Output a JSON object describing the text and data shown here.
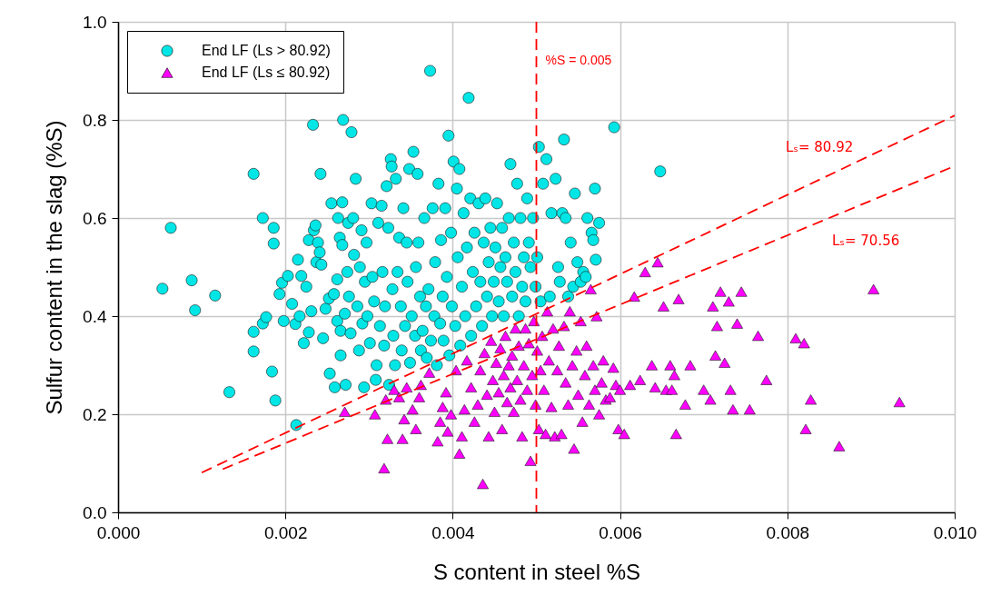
{
  "chart_data": {
    "type": "scatter",
    "xlabel": "S content in steel    %S",
    "ylabel": "Sulfur content in the slag    (%S)",
    "xlim": [
      0,
      0.01
    ],
    "xticks": [
      {
        "value": 0,
        "label": "0.000"
      },
      0.002,
      0.004,
      0.006,
      0.008,
      {
        "value": 0.01,
        "label": "0.010"
      }
    ],
    "ylim": [
      0,
      1
    ],
    "yticks": [
      {
        "value": 0,
        "label": "0.0"
      },
      0.2,
      0.4,
      0.6,
      0.8,
      {
        "value": 1,
        "label": "1.0"
      }
    ],
    "grid": true,
    "legend": "top left",
    "series": [
      {
        "name": "End LF (Ls > 80.92)",
        "marker": "circle",
        "color": "#00e6e6",
        "x": [
          0.00053,
          0.00063,
          0.00088,
          0.00092,
          0.00116,
          0.00133,
          0.00162,
          0.00162,
          0.00162,
          0.00173,
          0.00173,
          0.00177,
          0.00184,
          0.00186,
          0.00186,
          0.00188,
          0.00193,
          0.00196,
          0.00198,
          0.00203,
          0.00208,
          0.00212,
          0.00213,
          0.00215,
          0.00217,
          0.00219,
          0.00222,
          0.00225,
          0.00228,
          0.00228,
          0.00231,
          0.00233,
          0.00234,
          0.00236,
          0.00237,
          0.00239,
          0.00241,
          0.00242,
          0.00243,
          0.00245,
          0.00248,
          0.00252,
          0.00253,
          0.00255,
          0.00258,
          0.00259,
          0.00262,
          0.00262,
          0.00263,
          0.00265,
          0.00266,
          0.00266,
          0.00268,
          0.00268,
          0.00269,
          0.00271,
          0.00272,
          0.00274,
          0.00275,
          0.00276,
          0.00278,
          0.00279,
          0.00281,
          0.00282,
          0.00284,
          0.00286,
          0.00288,
          0.00289,
          0.00291,
          0.00292,
          0.00294,
          0.00295,
          0.00297,
          0.00298,
          0.00301,
          0.00303,
          0.00304,
          0.00306,
          0.00308,
          0.00309,
          0.00311,
          0.00313,
          0.00315,
          0.00316,
          0.00318,
          0.00319,
          0.00321,
          0.00323,
          0.00324,
          0.00326,
          0.00327,
          0.00328,
          0.00329,
          0.00331,
          0.00332,
          0.00334,
          0.00336,
          0.00338,
          0.00339,
          0.00341,
          0.00343,
          0.00345,
          0.00346,
          0.00348,
          0.00349,
          0.00351,
          0.00353,
          0.00355,
          0.00356,
          0.00358,
          0.00359,
          0.00361,
          0.00362,
          0.00364,
          0.00366,
          0.00368,
          0.00369,
          0.00371,
          0.00373,
          0.00374,
          0.00376,
          0.00378,
          0.00379,
          0.00381,
          0.00383,
          0.00385,
          0.00386,
          0.00388,
          0.00389,
          0.00391,
          0.00393,
          0.00395,
          0.00396,
          0.00398,
          0.00399,
          0.00401,
          0.00403,
          0.00405,
          0.00406,
          0.00408,
          0.00409,
          0.00411,
          0.00413,
          0.00415,
          0.00417,
          0.00419,
          0.00421,
          0.00422,
          0.00424,
          0.00426,
          0.00428,
          0.00431,
          0.00433,
          0.00435,
          0.00437,
          0.00439,
          0.00441,
          0.00443,
          0.00445,
          0.00447,
          0.00449,
          0.00451,
          0.00453,
          0.00455,
          0.00457,
          0.00459,
          0.00461,
          0.00463,
          0.00465,
          0.00467,
          0.00469,
          0.00471,
          0.00473,
          0.00475,
          0.00477,
          0.00479,
          0.00481,
          0.00483,
          0.00485,
          0.00487,
          0.00489,
          0.00491,
          0.00493,
          0.00496,
          0.00499,
          0.00501,
          0.00503,
          0.00505,
          0.00508,
          0.00512,
          0.00516,
          0.00518,
          0.00523,
          0.00526,
          0.00528,
          0.00531,
          0.00533,
          0.00535,
          0.00538,
          0.00541,
          0.00544,
          0.00546,
          0.00549,
          0.00553,
          0.00556,
          0.00559,
          0.00561,
          0.00566,
          0.00568,
          0.0057,
          0.00571,
          0.00575,
          0.00593,
          0.00648
        ],
        "values": [
          0.456,
          0.58,
          0.473,
          0.412,
          0.442,
          0.245,
          0.69,
          0.368,
          0.328,
          0.6,
          0.385,
          0.398,
          0.287,
          0.58,
          0.548,
          0.228,
          0.445,
          0.468,
          0.39,
          0.482,
          0.425,
          0.384,
          0.178,
          0.515,
          0.4,
          0.482,
          0.345,
          0.46,
          0.367,
          0.555,
          0.41,
          0.79,
          0.575,
          0.585,
          0.51,
          0.55,
          0.53,
          0.69,
          0.505,
          0.355,
          0.415,
          0.436,
          0.283,
          0.63,
          0.445,
          0.255,
          0.475,
          0.39,
          0.6,
          0.56,
          0.32,
          0.37,
          0.545,
          0.632,
          0.8,
          0.405,
          0.26,
          0.49,
          0.59,
          0.44,
          0.365,
          0.775,
          0.6,
          0.525,
          0.68,
          0.42,
          0.33,
          0.5,
          0.575,
          0.385,
          0.255,
          0.47,
          0.55,
          0.4,
          0.345,
          0.63,
          0.48,
          0.43,
          0.27,
          0.3,
          0.59,
          0.38,
          0.625,
          0.49,
          0.34,
          0.42,
          0.665,
          0.58,
          0.26,
          0.72,
          0.705,
          0.455,
          0.36,
          0.3,
          0.68,
          0.49,
          0.56,
          0.42,
          0.33,
          0.62,
          0.38,
          0.55,
          0.47,
          0.7,
          0.305,
          0.4,
          0.735,
          0.36,
          0.5,
          0.69,
          0.55,
          0.44,
          0.33,
          0.37,
          0.6,
          0.42,
          0.315,
          0.455,
          0.9,
          0.35,
          0.62,
          0.4,
          0.51,
          0.3,
          0.67,
          0.385,
          0.555,
          0.44,
          0.35,
          0.62,
          0.48,
          0.768,
          0.32,
          0.57,
          0.42,
          0.715,
          0.38,
          0.66,
          0.52,
          0.7,
          0.34,
          0.46,
          0.61,
          0.4,
          0.54,
          0.845,
          0.64,
          0.36,
          0.49,
          0.57,
          0.42,
          0.63,
          0.47,
          0.38,
          0.55,
          0.64,
          0.44,
          0.51,
          0.58,
          0.4,
          0.47,
          0.54,
          0.63,
          0.43,
          0.5,
          0.58,
          0.4,
          0.52,
          0.47,
          0.6,
          0.71,
          0.44,
          0.55,
          0.49,
          0.67,
          0.4,
          0.6,
          0.46,
          0.52,
          0.43,
          0.64,
          0.55,
          0.5,
          0.6,
          0.46,
          0.52,
          0.745,
          0.43,
          0.67,
          0.72,
          0.44,
          0.61,
          0.68,
          0.5,
          0.47,
          0.61,
          0.76,
          0.6,
          0.44,
          0.55,
          0.46,
          0.65,
          0.51,
          0.47,
          0.49,
          0.48,
          0.6,
          0.57,
          0.555,
          0.66,
          0.515,
          0.59,
          0.785,
          0.695
        ]
      },
      {
        "name": "End LF (Ls ≤ 80.92)",
        "marker": "triangle",
        "color": "#ff00ff",
        "x": [
          0.00271,
          0.00307,
          0.00318,
          0.0032,
          0.00322,
          0.0033,
          0.00336,
          0.0034,
          0.00342,
          0.00345,
          0.00352,
          0.00356,
          0.0036,
          0.00362,
          0.00372,
          0.00382,
          0.00385,
          0.00388,
          0.00392,
          0.00394,
          0.00398,
          0.00404,
          0.00408,
          0.00411,
          0.00414,
          0.00417,
          0.00422,
          0.00426,
          0.0043,
          0.00433,
          0.00436,
          0.00438,
          0.00441,
          0.00443,
          0.00446,
          0.00448,
          0.0045,
          0.00452,
          0.00455,
          0.00457,
          0.00459,
          0.00461,
          0.00463,
          0.00465,
          0.00467,
          0.00469,
          0.00471,
          0.00473,
          0.00475,
          0.00477,
          0.00479,
          0.00481,
          0.00483,
          0.00485,
          0.00487,
          0.00489,
          0.00491,
          0.00493,
          0.00495,
          0.00497,
          0.00499,
          0.00501,
          0.00503,
          0.00505,
          0.00507,
          0.00509,
          0.00511,
          0.00513,
          0.00515,
          0.00518,
          0.0052,
          0.00522,
          0.00525,
          0.00527,
          0.0053,
          0.00533,
          0.00535,
          0.00538,
          0.0054,
          0.00543,
          0.00545,
          0.00548,
          0.0055,
          0.00553,
          0.00555,
          0.00558,
          0.0056,
          0.00563,
          0.00565,
          0.00568,
          0.0057,
          0.00572,
          0.00575,
          0.00578,
          0.0058,
          0.00583,
          0.00588,
          0.00592,
          0.00595,
          0.00598,
          0.006,
          0.00605,
          0.00612,
          0.00617,
          0.00624,
          0.0063,
          0.00638,
          0.00642,
          0.00645,
          0.00652,
          0.00655,
          0.0066,
          0.00662,
          0.00665,
          0.00667,
          0.0067,
          0.00678,
          0.00684,
          0.007,
          0.00708,
          0.00711,
          0.00714,
          0.00716,
          0.0072,
          0.00725,
          0.0073,
          0.00732,
          0.00735,
          0.0074,
          0.00745,
          0.00755,
          0.00765,
          0.00775,
          0.0081,
          0.0082,
          0.00822,
          0.00828,
          0.00862,
          0.00903,
          0.00934
        ],
        "values": [
          0.205,
          0.2,
          0.09,
          0.23,
          0.15,
          0.25,
          0.235,
          0.15,
          0.19,
          0.255,
          0.21,
          0.17,
          0.235,
          0.26,
          0.285,
          0.145,
          0.185,
          0.215,
          0.245,
          0.165,
          0.2,
          0.29,
          0.12,
          0.155,
          0.21,
          0.31,
          0.255,
          0.185,
          0.22,
          0.29,
          0.058,
          0.325,
          0.24,
          0.155,
          0.35,
          0.27,
          0.205,
          0.305,
          0.245,
          0.335,
          0.17,
          0.28,
          0.36,
          0.225,
          0.3,
          0.255,
          0.32,
          0.205,
          0.375,
          0.27,
          0.34,
          0.23,
          0.155,
          0.3,
          0.375,
          0.25,
          0.345,
          0.105,
          0.28,
          0.39,
          0.22,
          0.33,
          0.17,
          0.29,
          0.36,
          0.25,
          0.16,
          0.41,
          0.31,
          0.215,
          0.375,
          0.155,
          0.29,
          0.34,
          0.16,
          0.38,
          0.265,
          0.22,
          0.41,
          0.3,
          0.13,
          0.33,
          0.24,
          0.39,
          0.185,
          0.28,
          0.34,
          0.22,
          0.455,
          0.3,
          0.25,
          0.4,
          0.2,
          0.265,
          0.31,
          0.23,
          0.235,
          0.295,
          0.26,
          0.17,
          0.25,
          0.16,
          0.26,
          0.44,
          0.27,
          0.49,
          0.3,
          0.255,
          0.51,
          0.42,
          0.25,
          0.3,
          0.25,
          0.28,
          0.16,
          0.435,
          0.22,
          0.3,
          0.25,
          0.23,
          0.42,
          0.32,
          0.38,
          0.45,
          0.305,
          0.43,
          0.25,
          0.21,
          0.385,
          0.45,
          0.21,
          0.36,
          0.27,
          0.355,
          0.345,
          0.17,
          0.23,
          0.135,
          0.455,
          0.225
        ]
      },
      {
        "name": "Lₛ= 80.92",
        "type": "line",
        "line_style": "dashed",
        "color": "#ff0000",
        "x": [
          0.001,
          0.01
        ],
        "values": [
          0.081,
          0.809
        ]
      },
      {
        "name": "Lₛ= 70.56",
        "type": "line",
        "line_style": "dashed",
        "color": "#ff0000",
        "x": [
          0.00125,
          0.01
        ],
        "values": [
          0.088,
          0.706
        ]
      }
    ],
    "ref_lines": [
      {
        "axis": "x",
        "value": 0.005,
        "label": "%S = 0.005",
        "color": "#ff0000",
        "line_style": "dashed"
      }
    ]
  }
}
